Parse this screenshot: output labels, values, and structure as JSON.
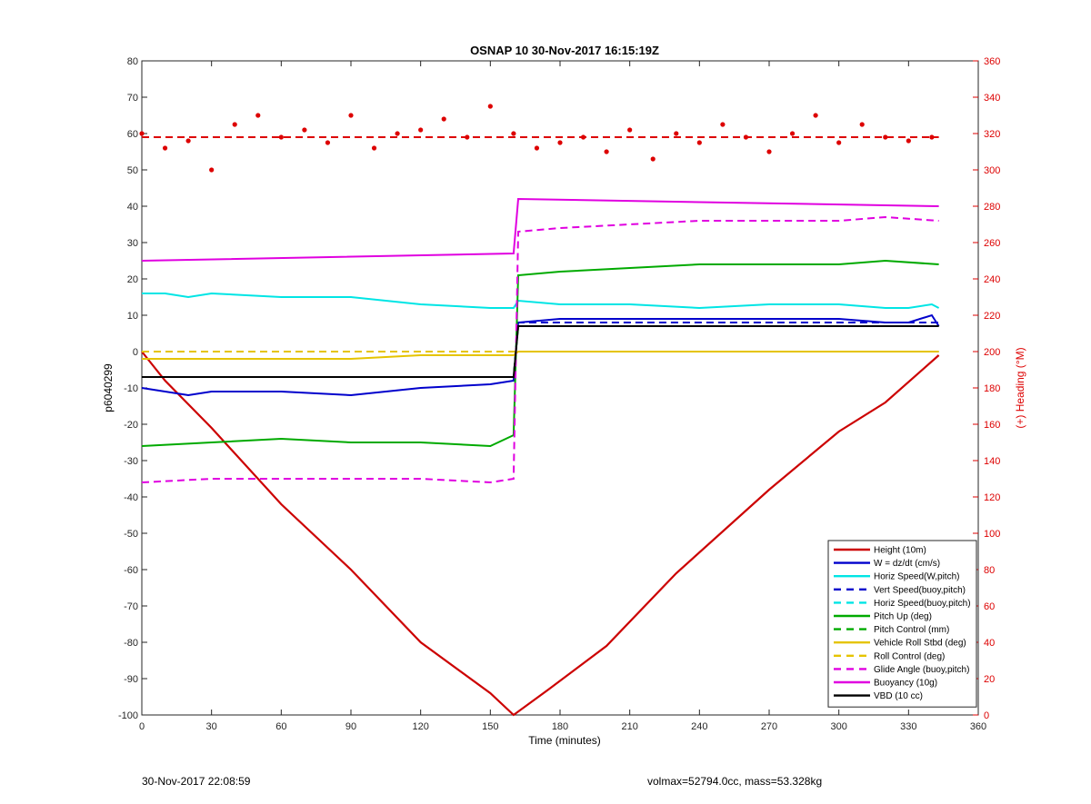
{
  "footer": {
    "left": "30-Nov-2017 22:08:59",
    "right": "volmax=52794.0cc, mass=53.328kg"
  },
  "chart_data": {
    "type": "line",
    "title": "OSNAP 10 30-Nov-2017 16:15:19Z",
    "xlabel": "Time (minutes)",
    "ylabel": "p6040299",
    "y2label": "(+) Heading (°M)",
    "xlim": [
      0,
      360
    ],
    "ylim": [
      -100,
      80
    ],
    "y2lim": [
      0,
      360
    ],
    "xticks": [
      0,
      30,
      60,
      90,
      120,
      150,
      180,
      210,
      240,
      270,
      300,
      330,
      360
    ],
    "yticks": [
      -100,
      -90,
      -80,
      -70,
      -60,
      -50,
      -40,
      -30,
      -20,
      -10,
      0,
      10,
      20,
      30,
      40,
      50,
      60,
      70,
      80
    ],
    "y2ticks": [
      0,
      20,
      40,
      60,
      80,
      100,
      120,
      140,
      160,
      180,
      200,
      220,
      240,
      260,
      280,
      300,
      320,
      340,
      360
    ],
    "legend_position": "bottom-right",
    "series": [
      {
        "name": "Height (10m)",
        "color": "#cc0000",
        "style": "solid",
        "x": [
          0,
          10,
          30,
          60,
          90,
          120,
          150,
          160,
          175,
          200,
          230,
          270,
          300,
          320,
          343
        ],
        "y": [
          0,
          -8,
          -21,
          -42,
          -60,
          -80,
          -94,
          -100,
          -93,
          -81,
          -61,
          -38,
          -22,
          -14,
          -1
        ]
      },
      {
        "name": "W = dz/dt (cm/s)",
        "color": "#0000cc",
        "style": "solid",
        "x": [
          0,
          10,
          20,
          30,
          60,
          90,
          120,
          150,
          160,
          162,
          180,
          210,
          240,
          270,
          300,
          320,
          330,
          340,
          343
        ],
        "y": [
          -10,
          -11,
          -12,
          -11,
          -11,
          -12,
          -10,
          -9,
          -8,
          8,
          9,
          9,
          9,
          9,
          9,
          8,
          8,
          10,
          7
        ]
      },
      {
        "name": "Horiz Speed(W,pitch)",
        "color": "#00e5e5",
        "style": "solid",
        "x": [
          0,
          10,
          20,
          30,
          60,
          90,
          120,
          150,
          160,
          162,
          180,
          210,
          240,
          270,
          300,
          320,
          330,
          340,
          343
        ],
        "y": [
          16,
          16,
          15,
          16,
          15,
          15,
          13,
          12,
          12,
          14,
          13,
          13,
          12,
          13,
          13,
          12,
          12,
          13,
          12
        ]
      },
      {
        "name": "Vert Speed(buoy,pitch)",
        "color": "#0000cc",
        "style": "dashed",
        "x": [
          0,
          160,
          162,
          343
        ],
        "y": [
          -7,
          -7,
          8,
          8
        ]
      },
      {
        "name": "Horiz Speed(buoy,pitch)",
        "color": "#00e5e5",
        "style": "dashed",
        "x": [
          0,
          160,
          162,
          343
        ],
        "y": [
          0,
          0,
          0,
          0
        ]
      },
      {
        "name": "Pitch Up (deg)",
        "color": "#00aa00",
        "style": "solid",
        "x": [
          0,
          30,
          60,
          90,
          120,
          150,
          160,
          162,
          180,
          210,
          240,
          270,
          300,
          320,
          343
        ],
        "y": [
          -26,
          -25,
          -24,
          -25,
          -25,
          -26,
          -23,
          21,
          22,
          23,
          24,
          24,
          24,
          25,
          24
        ]
      },
      {
        "name": "Pitch Control (mm)",
        "color": "#00aa00",
        "style": "dashed",
        "x": [
          0,
          160,
          162,
          343
        ],
        "y": [
          -7,
          -7,
          7,
          7
        ]
      },
      {
        "name": "Vehicle Roll Stbd (deg)",
        "color": "#e5c400",
        "style": "solid",
        "x": [
          0,
          30,
          60,
          90,
          120,
          150,
          160,
          162,
          180,
          210,
          240,
          270,
          300,
          330,
          343
        ],
        "y": [
          -2,
          -2,
          -2,
          -2,
          -1,
          -1,
          -1,
          0,
          0,
          0,
          0,
          0,
          0,
          0,
          0
        ]
      },
      {
        "name": "Roll Control (deg)",
        "color": "#e5c400",
        "style": "dashed",
        "x": [
          0,
          160,
          162,
          343
        ],
        "y": [
          0,
          0,
          0,
          0
        ]
      },
      {
        "name": "Glide Angle (buoy,pitch)",
        "color": "#e000e0",
        "style": "dashed",
        "x": [
          0,
          30,
          60,
          90,
          120,
          150,
          160,
          162,
          180,
          210,
          240,
          270,
          300,
          320,
          343
        ],
        "y": [
          -36,
          -35,
          -35,
          -35,
          -35,
          -36,
          -35,
          33,
          34,
          35,
          36,
          36,
          36,
          37,
          36
        ]
      },
      {
        "name": "Buoyancy (10g)",
        "color": "#e000e0",
        "style": "solid",
        "x": [
          0,
          160,
          162,
          343
        ],
        "y": [
          25,
          27,
          42,
          40
        ]
      },
      {
        "name": "VBD (10 cc)",
        "color": "#000000",
        "style": "solid",
        "x": [
          0,
          160,
          162,
          343
        ],
        "y": [
          -7,
          -7,
          7,
          7
        ]
      },
      {
        "name": "Heading",
        "color": "#dd0000",
        "style": "points",
        "axis": "right",
        "legend": false,
        "x": [
          0,
          10,
          20,
          30,
          40,
          50,
          60,
          70,
          80,
          90,
          100,
          110,
          120,
          130,
          140,
          150,
          160,
          170,
          180,
          190,
          200,
          210,
          220,
          230,
          240,
          250,
          260,
          270,
          280,
          290,
          300,
          310,
          320,
          330,
          340
        ],
        "y": [
          320,
          312,
          316,
          300,
          325,
          330,
          318,
          322,
          315,
          330,
          312,
          320,
          322,
          328,
          318,
          335,
          320,
          312,
          315,
          318,
          310,
          322,
          306,
          320,
          315,
          325,
          318,
          310,
          320,
          330,
          315,
          325,
          318,
          316,
          318
        ]
      },
      {
        "name": "Heading mean",
        "color": "#dd0000",
        "style": "dashed",
        "axis": "right",
        "legend": false,
        "x": [
          0,
          343
        ],
        "y": [
          318,
          318
        ]
      }
    ]
  }
}
